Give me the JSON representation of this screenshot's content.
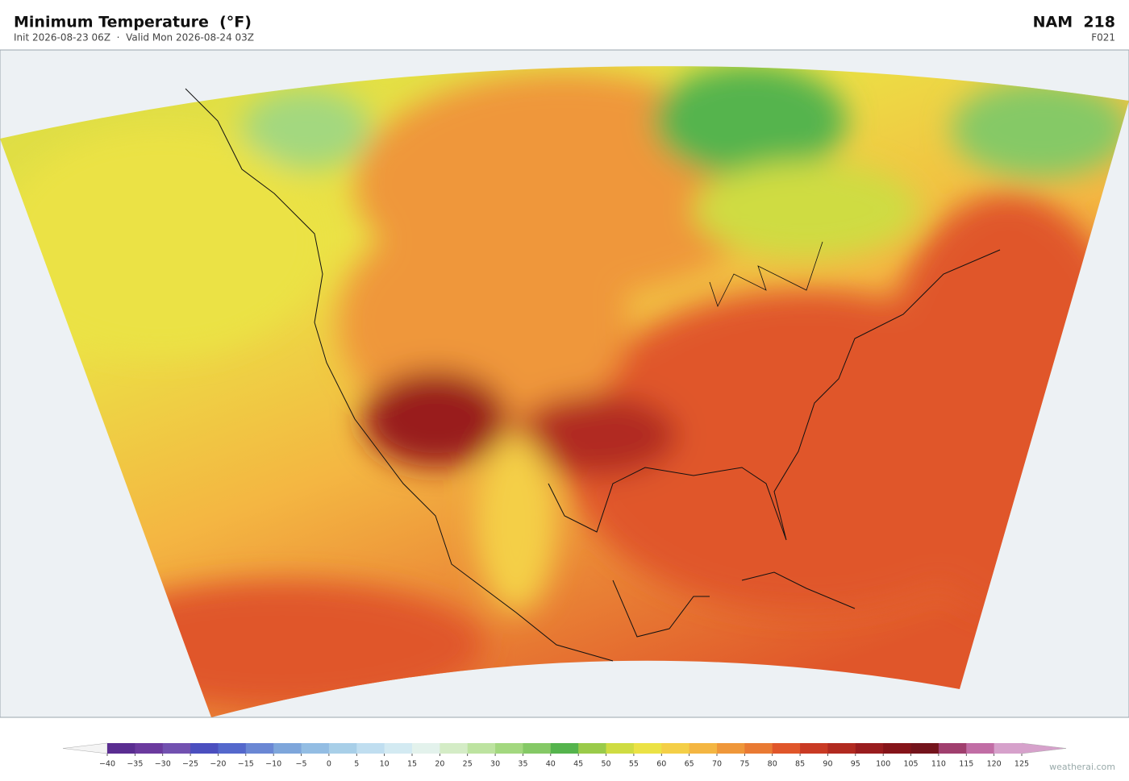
{
  "header": {
    "title": "Minimum Temperature  (°F)",
    "subtitle": "Init 2026-08-23 06Z  ·  Valid Mon 2026-08-24 03Z",
    "model": "NAM  218",
    "forecast_hour": "F021"
  },
  "colorbar": {
    "ticks": [
      {
        "value": -40,
        "label": "−40"
      },
      {
        "value": -35,
        "label": "−35"
      },
      {
        "value": -30,
        "label": "−30"
      },
      {
        "value": -25,
        "label": "−25"
      },
      {
        "value": -20,
        "label": "−20"
      },
      {
        "value": -15,
        "label": "−15"
      },
      {
        "value": -10,
        "label": "−10"
      },
      {
        "value": -5,
        "label": "−5"
      },
      0,
      5,
      10,
      15,
      20,
      25,
      30,
      35,
      40,
      45,
      50,
      55,
      60,
      65,
      70,
      75,
      80,
      85,
      90,
      95,
      100,
      105,
      110,
      115,
      120,
      125
    ],
    "colors": [
      "#5a2d91",
      "#6b3a9e",
      "#7251b0",
      "#4b4fbf",
      "#5468cc",
      "#6a87d4",
      "#7ea6db",
      "#93bde3",
      "#a8cfe8",
      "#c0def0",
      "#d3eaf2",
      "#e3f2ec",
      "#d4ecc6",
      "#bde3a0",
      "#a3d87f",
      "#85c966",
      "#55b44d",
      "#9acb4a",
      "#cfdc42",
      "#ebe245",
      "#f4cf47",
      "#f4b642",
      "#ef973a",
      "#e97a33",
      "#e0562a",
      "#c93a24",
      "#b12a20",
      "#991c1e",
      "#851419",
      "#74141c",
      "#a03f6e",
      "#c16da5",
      "#d6a1cb"
    ],
    "under_color": "#f4f4f4",
    "over_color": "#d6a1cb"
  },
  "footer": {
    "watermark": "weatherai.com"
  }
}
